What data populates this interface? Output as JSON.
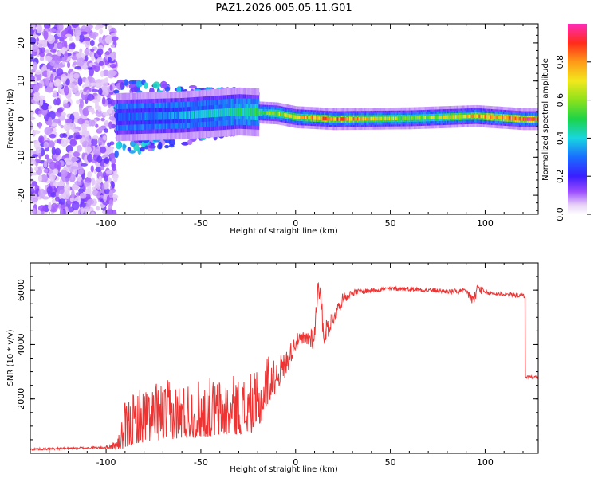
{
  "title": "PAZ1.2026.005.05.11.G01",
  "colors": {
    "snr_line": "#ee3333",
    "axis": "#000000"
  },
  "chart_data": [
    {
      "type": "heatmap",
      "name": "spectrogram",
      "xlabel": "Height of straight line (km)",
      "ylabel": "Frequency (Hz)",
      "xlim": [
        -140,
        128
      ],
      "ylim": [
        -25,
        25
      ],
      "x_ticks": [
        -100,
        -50,
        0,
        50,
        100
      ],
      "x_tick_labels": [
        "-100",
        "-50",
        "0",
        "50",
        "100"
      ],
      "y_ticks": [
        -20,
        -10,
        0,
        10,
        20
      ],
      "y_tick_labels": [
        "-20",
        "-10",
        "0",
        "10",
        "20"
      ],
      "colorbar": {
        "label": "Normalized spectral amplitude",
        "range": [
          0,
          1
        ],
        "ticks": [
          0.0,
          0.2,
          0.4,
          0.6,
          0.8
        ],
        "tick_labels": [
          "0.0",
          "0.2",
          "0.4",
          "0.6",
          "0.8"
        ],
        "colormap": "rainbow-magenta"
      },
      "ridge": {
        "description_points": [
          {
            "x": -95,
            "freq": 0.5,
            "amp": 0.25
          },
          {
            "x": -60,
            "freq": 1.0,
            "amp": 0.35
          },
          {
            "x": -30,
            "freq": 2.0,
            "amp": 0.45
          },
          {
            "x": -10,
            "freq": 1.5,
            "amp": 0.6
          },
          {
            "x": 0,
            "freq": 0.5,
            "amp": 0.7
          },
          {
            "x": 20,
            "freq": 0.0,
            "amp": 0.85
          },
          {
            "x": 60,
            "freq": 0.2,
            "amp": 0.55
          },
          {
            "x": 95,
            "freq": 0.8,
            "amp": 0.75
          },
          {
            "x": 120,
            "freq": 0.0,
            "amp": 0.9
          }
        ]
      }
    },
    {
      "type": "line",
      "name": "snr",
      "xlabel": "Height of straight line (km)",
      "ylabel": "SNR (10 * v/v)",
      "xlim": [
        -140,
        128
      ],
      "ylim": [
        0,
        7000
      ],
      "x_ticks": [
        -100,
        -50,
        0,
        50,
        100
      ],
      "x_tick_labels": [
        "-100",
        "-50",
        "0",
        "50",
        "100"
      ],
      "y_ticks": [
        2000,
        4000,
        6000
      ],
      "y_tick_labels": [
        "2000",
        "4000",
        "6000"
      ],
      "series": [
        {
          "name": "SNR",
          "x": [
            -140,
            -120,
            -100,
            -94,
            -90,
            -85,
            -80,
            -70,
            -60,
            -50,
            -40,
            -30,
            -20,
            -15,
            -10,
            -5,
            0,
            5,
            10,
            12,
            15,
            20,
            25,
            30,
            40,
            50,
            60,
            70,
            80,
            90,
            94,
            96,
            100,
            110,
            120,
            121,
            122,
            128
          ],
          "y": [
            150,
            180,
            220,
            300,
            700,
            1000,
            1100,
            1200,
            1250,
            1300,
            1350,
            1400,
            1500,
            2400,
            2900,
            3300,
            4100,
            4200,
            4300,
            6400,
            4400,
            5000,
            5700,
            5900,
            6000,
            6050,
            6050,
            6000,
            5950,
            5950,
            5600,
            6100,
            5900,
            5850,
            5800,
            5750,
            2800,
            2800
          ],
          "noise": [
            40,
            40,
            50,
            200,
            800,
            900,
            1000,
            1000,
            1000,
            1000,
            1000,
            1000,
            1000,
            900,
            600,
            500,
            300,
            300,
            500,
            400,
            500,
            300,
            200,
            120,
            90,
            80,
            80,
            80,
            90,
            100,
            300,
            200,
            90,
            80,
            80,
            60,
            60,
            60
          ]
        }
      ]
    }
  ]
}
